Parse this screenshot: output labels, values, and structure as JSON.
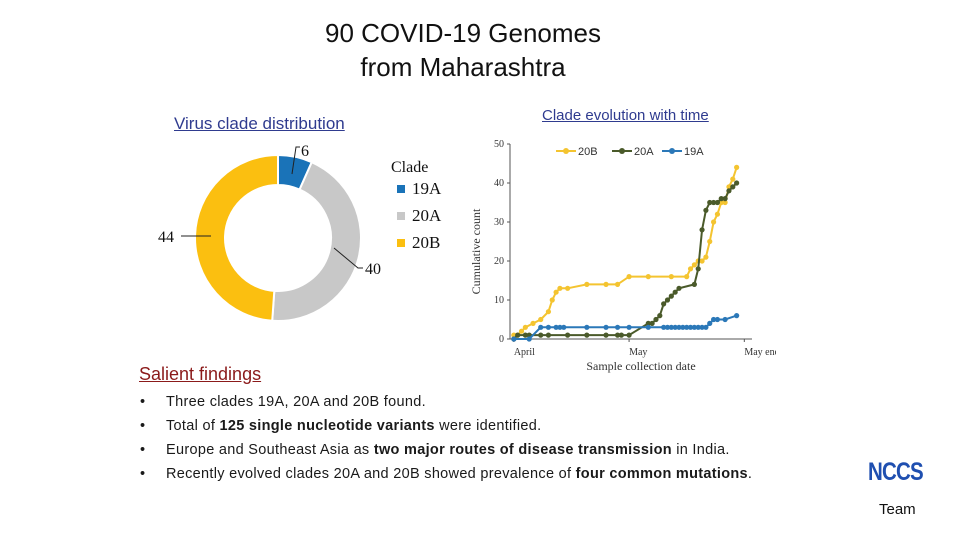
{
  "title": {
    "line1": "90 COVID-19 Genomes",
    "line2": "from Maharashtra"
  },
  "chart_data": [
    {
      "type": "pie",
      "title": "Virus clade distribution",
      "legend_title": "Clade",
      "legend_placement": "right",
      "hole": "donut",
      "slices": [
        {
          "label": "19A",
          "value": 6,
          "color": "#1a73b8"
        },
        {
          "label": "20A",
          "value": 40,
          "color": "#c8c8c8"
        },
        {
          "label": "20B",
          "value": 44,
          "color": "#fbbf10"
        }
      ]
    },
    {
      "type": "line",
      "title": "Clade evolution with time",
      "xlabel": "Sample collection date",
      "ylabel": "Cumulative count",
      "ylim": [
        0,
        50
      ],
      "yticks": [
        0,
        10,
        20,
        30,
        40,
        50
      ],
      "xlim": [
        "2020-03-31",
        "2020-06-02"
      ],
      "xticks": [
        {
          "date": "2020-04-01",
          "label": "April"
        },
        {
          "date": "2020-05-01",
          "label": "May"
        },
        {
          "date": "2020-05-31",
          "label": "May end"
        }
      ],
      "grid": false,
      "legend_placement": "top",
      "series": [
        {
          "name": "20B",
          "color": "#f4c430",
          "x": [
            "2020-04-01",
            "2020-04-02",
            "2020-04-03",
            "2020-04-04",
            "2020-04-06",
            "2020-04-08",
            "2020-04-10",
            "2020-04-11",
            "2020-04-12",
            "2020-04-13",
            "2020-04-15",
            "2020-04-20",
            "2020-04-25",
            "2020-04-28",
            "2020-05-01",
            "2020-05-06",
            "2020-05-12",
            "2020-05-16",
            "2020-05-17",
            "2020-05-18",
            "2020-05-19",
            "2020-05-20",
            "2020-05-21",
            "2020-05-22",
            "2020-05-23",
            "2020-05-24",
            "2020-05-25",
            "2020-05-26",
            "2020-05-27",
            "2020-05-28",
            "2020-05-29"
          ],
          "y": [
            1,
            1,
            2,
            3,
            4,
            5,
            7,
            10,
            12,
            13,
            13,
            14,
            14,
            14,
            16,
            16,
            16,
            16,
            18,
            19,
            20,
            20,
            21,
            25,
            30,
            32,
            35,
            35,
            39,
            41,
            44
          ]
        },
        {
          "name": "20A",
          "color": "#4a5a2a",
          "x": [
            "2020-04-01",
            "2020-04-02",
            "2020-04-04",
            "2020-04-05",
            "2020-04-08",
            "2020-04-10",
            "2020-04-15",
            "2020-04-20",
            "2020-04-25",
            "2020-04-28",
            "2020-04-29",
            "2020-05-01",
            "2020-05-06",
            "2020-05-07",
            "2020-05-08",
            "2020-05-09",
            "2020-05-10",
            "2020-05-11",
            "2020-05-12",
            "2020-05-13",
            "2020-05-14",
            "2020-05-18",
            "2020-05-19",
            "2020-05-20",
            "2020-05-21",
            "2020-05-22",
            "2020-05-23",
            "2020-05-24",
            "2020-05-25",
            "2020-05-26",
            "2020-05-27",
            "2020-05-28",
            "2020-05-29"
          ],
          "y": [
            0,
            1,
            1,
            1,
            1,
            1,
            1,
            1,
            1,
            1,
            1,
            1,
            4,
            4,
            5,
            6,
            9,
            10,
            11,
            12,
            13,
            14,
            18,
            28,
            33,
            35,
            35,
            35,
            36,
            36,
            38,
            39,
            40
          ]
        },
        {
          "name": "19A",
          "color": "#2b78b8",
          "x": [
            "2020-04-01",
            "2020-04-05",
            "2020-04-08",
            "2020-04-10",
            "2020-04-12",
            "2020-04-13",
            "2020-04-14",
            "2020-04-20",
            "2020-04-25",
            "2020-04-28",
            "2020-05-01",
            "2020-05-06",
            "2020-05-10",
            "2020-05-11",
            "2020-05-12",
            "2020-05-13",
            "2020-05-14",
            "2020-05-15",
            "2020-05-16",
            "2020-05-17",
            "2020-05-18",
            "2020-05-19",
            "2020-05-20",
            "2020-05-21",
            "2020-05-22",
            "2020-05-23",
            "2020-05-24",
            "2020-05-26",
            "2020-05-29"
          ],
          "y": [
            0,
            0,
            3,
            3,
            3,
            3,
            3,
            3,
            3,
            3,
            3,
            3,
            3,
            3,
            3,
            3,
            3,
            3,
            3,
            3,
            3,
            3,
            3,
            3,
            4,
            5,
            5,
            5,
            6
          ]
        }
      ]
    }
  ],
  "salient": {
    "heading": "Salient findings",
    "items": [
      {
        "plain1": "Three clades 19A, 20A and 20B found."
      },
      {
        "plain1": "Total of ",
        "bold1": "125 single nucleotide variants",
        "plain2": " were identified."
      },
      {
        "plain1": "Europe and Southeast Asia as ",
        "bold1": "two major routes of disease transmission",
        "plain2": " in India."
      },
      {
        "plain1": "Recently evolved clades 20A and 20B showed prevalence of ",
        "bold1": "four common mutations",
        "plain2": "."
      }
    ]
  },
  "logo": {
    "text": "NCCS",
    "team": "Team"
  }
}
